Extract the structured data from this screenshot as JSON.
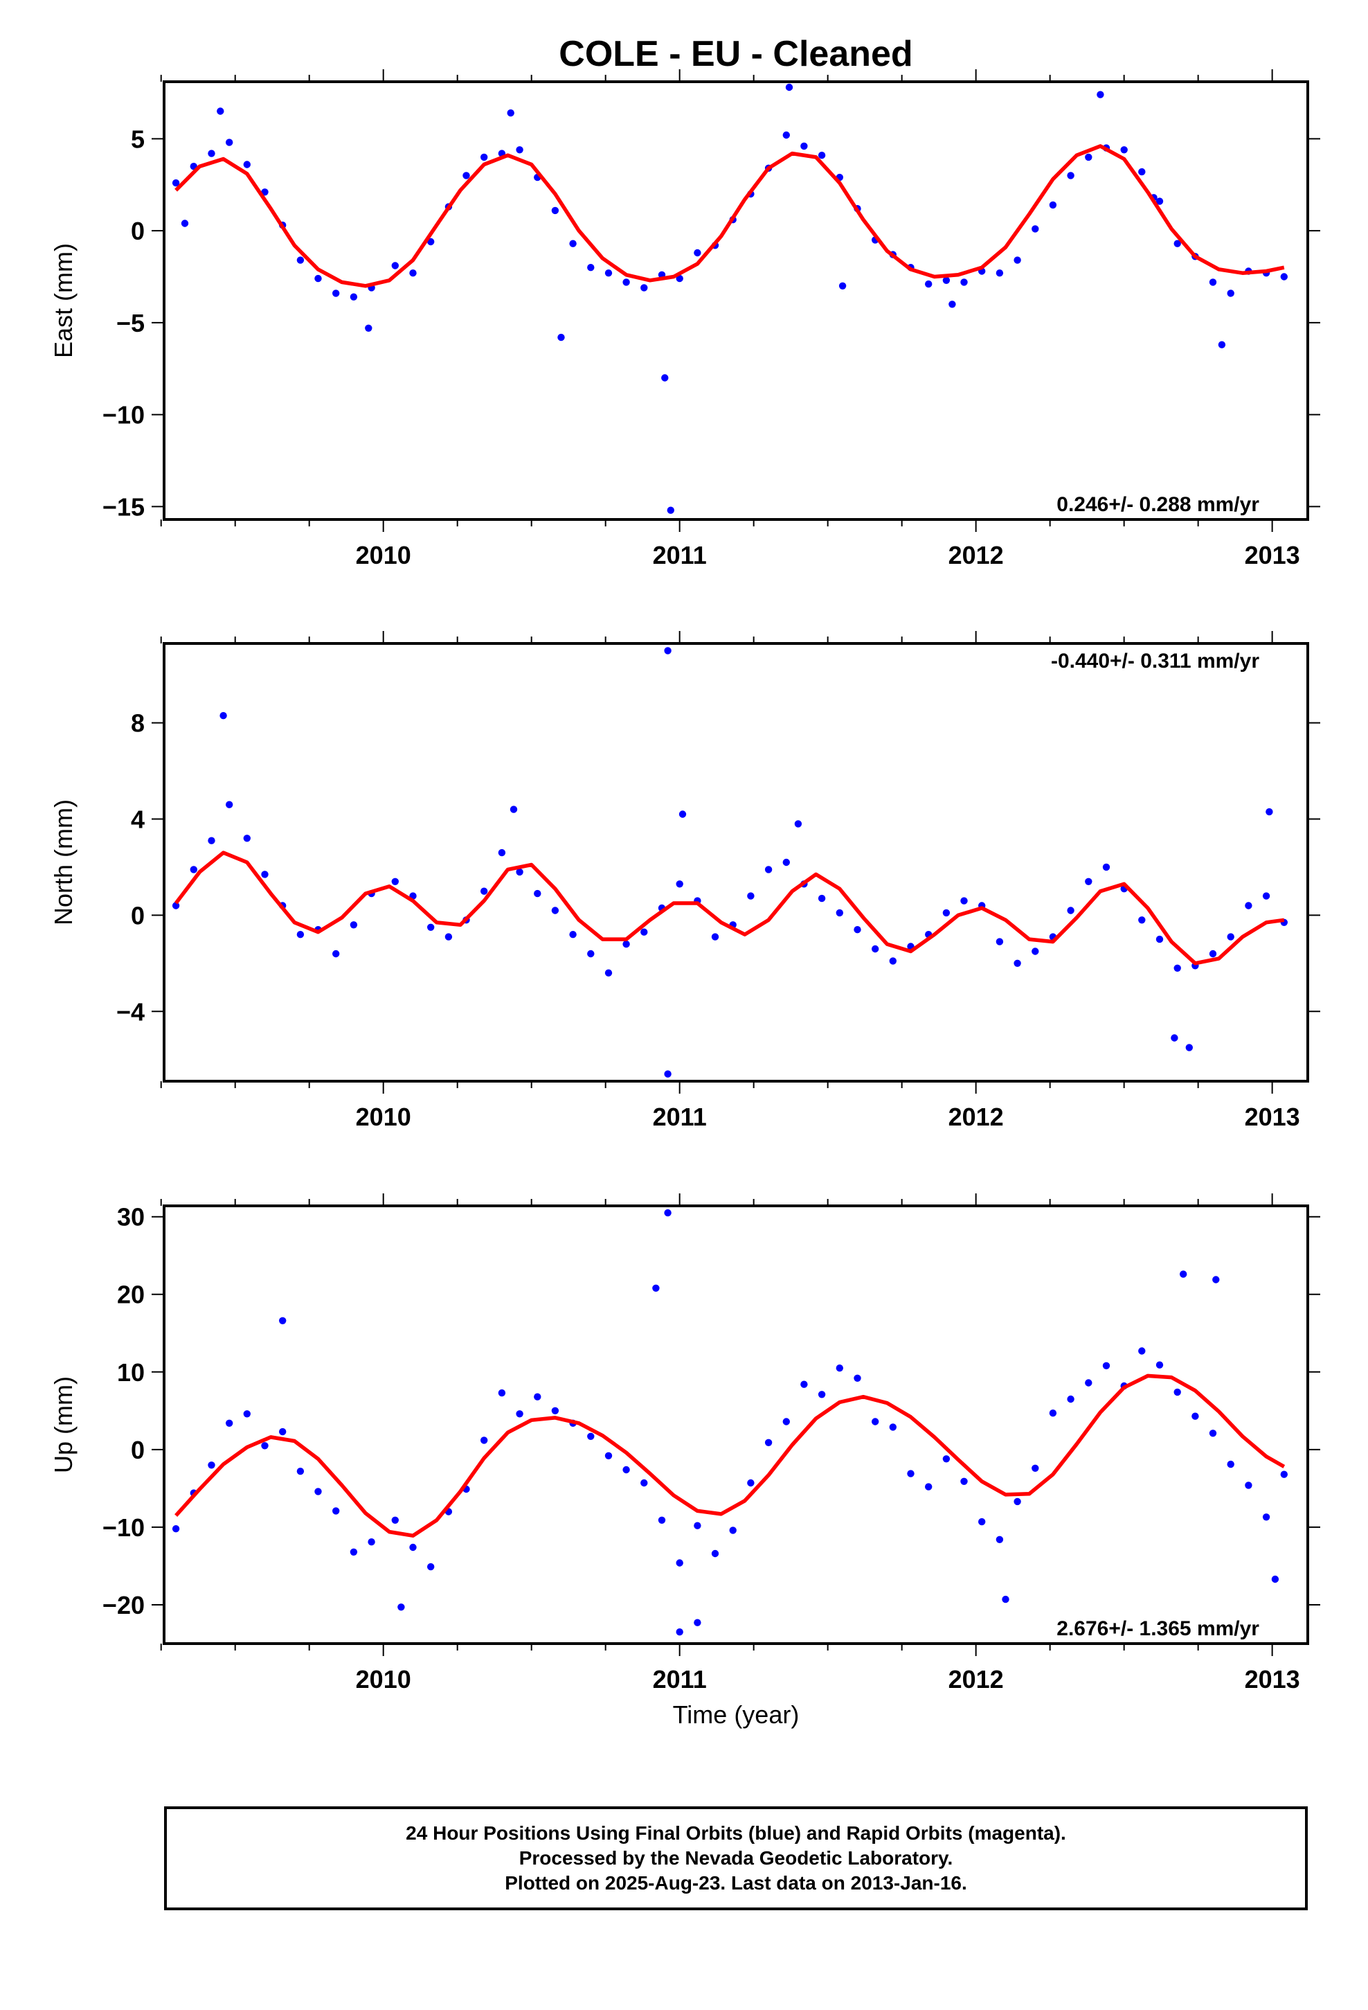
{
  "title": "COLE  - EU - Cleaned",
  "xlabel": "Time (year)",
  "caption": {
    "line1": "24 Hour Positions Using Final Orbits (blue) and Rapid Orbits (magenta).",
    "line2": "Processed by the Nevada Geodetic Laboratory.",
    "line3": "Plotted on 2025-Aug-23. Last data on 2013-Jan-16."
  },
  "colors": {
    "points": "#0000ff",
    "fit": "#ff0000",
    "axes": "#000000"
  },
  "chart_data": [
    {
      "type": "scatter",
      "ylabel": "East (mm)",
      "xlim": [
        2009.26,
        2013.12
      ],
      "ylim": [
        -15.7,
        8.1
      ],
      "x_ticks": [
        2010,
        2011,
        2012,
        2013
      ],
      "y_ticks": [
        -15,
        -10,
        -5,
        0,
        5
      ],
      "rate_label": "0.246+/- 0.288 mm/yr",
      "rate_position": "bottom-right",
      "series": [
        {
          "style": "points",
          "x": [
            2009.3,
            2009.36,
            2009.42,
            2009.48,
            2009.54,
            2009.6,
            2009.66,
            2009.72,
            2009.78,
            2009.84,
            2009.9,
            2009.96,
            2010.04,
            2010.1,
            2010.16,
            2010.22,
            2010.28,
            2010.34,
            2010.4,
            2010.46,
            2010.52,
            2010.58,
            2010.64,
            2010.7,
            2010.76,
            2010.82,
            2010.88,
            2010.94,
            2011.0,
            2011.06,
            2011.12,
            2011.18,
            2011.24,
            2011.3,
            2011.36,
            2011.42,
            2011.48,
            2011.54,
            2011.6,
            2011.66,
            2011.72,
            2011.78,
            2011.84,
            2011.9,
            2011.96,
            2012.02,
            2012.08,
            2012.14,
            2012.2,
            2012.26,
            2012.32,
            2012.38,
            2012.44,
            2012.5,
            2012.56,
            2012.62,
            2012.68,
            2012.74,
            2012.8,
            2012.86,
            2012.92,
            2012.98,
            2013.04,
            2009.45,
            2010.43,
            2011.37,
            2012.42,
            2010.95,
            2010.97,
            2009.95,
            2011.92,
            2012.83,
            2009.33,
            2010.6,
            2011.55,
            2012.6
          ],
          "y": [
            2.6,
            3.5,
            4.2,
            4.8,
            3.6,
            2.1,
            0.3,
            -1.6,
            -2.6,
            -3.4,
            -3.6,
            -3.1,
            -1.9,
            -2.3,
            -0.6,
            1.3,
            3.0,
            4.0,
            4.2,
            4.4,
            2.9,
            1.1,
            -0.7,
            -2.0,
            -2.3,
            -2.8,
            -3.1,
            -2.4,
            -2.6,
            -1.2,
            -0.8,
            0.6,
            2.0,
            3.4,
            5.2,
            4.6,
            4.1,
            2.9,
            1.2,
            -0.5,
            -1.3,
            -2.0,
            -2.9,
            -2.7,
            -2.8,
            -2.2,
            -2.3,
            -1.6,
            0.1,
            1.4,
            3.0,
            4.0,
            4.5,
            4.4,
            3.2,
            1.6,
            -0.7,
            -1.4,
            -2.8,
            -3.4,
            -2.2,
            -2.3,
            -2.5,
            6.5,
            6.4,
            7.8,
            7.4,
            -8.0,
            -15.2,
            -5.3,
            -4.0,
            -6.2,
            0.4,
            -5.8,
            -3.0,
            1.8
          ]
        },
        {
          "style": "line",
          "x": [
            2009.3,
            2009.38,
            2009.46,
            2009.54,
            2009.62,
            2009.7,
            2009.78,
            2009.86,
            2009.94,
            2010.02,
            2010.1,
            2010.18,
            2010.26,
            2010.34,
            2010.42,
            2010.5,
            2010.58,
            2010.66,
            2010.74,
            2010.82,
            2010.9,
            2010.98,
            2011.06,
            2011.14,
            2011.22,
            2011.3,
            2011.38,
            2011.46,
            2011.54,
            2011.62,
            2011.7,
            2011.78,
            2011.86,
            2011.94,
            2012.02,
            2012.1,
            2012.18,
            2012.26,
            2012.34,
            2012.42,
            2012.5,
            2012.58,
            2012.66,
            2012.74,
            2012.82,
            2012.9,
            2012.98,
            2013.04
          ],
          "y": [
            2.2,
            3.5,
            3.9,
            3.1,
            1.2,
            -0.8,
            -2.1,
            -2.8,
            -3.0,
            -2.7,
            -1.6,
            0.3,
            2.2,
            3.6,
            4.1,
            3.6,
            2.0,
            0.0,
            -1.5,
            -2.4,
            -2.7,
            -2.5,
            -1.8,
            -0.3,
            1.7,
            3.4,
            4.2,
            4.0,
            2.6,
            0.6,
            -1.1,
            -2.1,
            -2.5,
            -2.4,
            -2.0,
            -0.9,
            0.9,
            2.8,
            4.1,
            4.6,
            3.9,
            2.1,
            0.1,
            -1.4,
            -2.1,
            -2.3,
            -2.2,
            -2.0
          ]
        }
      ]
    },
    {
      "type": "scatter",
      "ylabel": "North (mm)",
      "xlim": [
        2009.26,
        2013.12
      ],
      "ylim": [
        -6.9,
        11.3
      ],
      "x_ticks": [
        2010,
        2011,
        2012,
        2013
      ],
      "y_ticks": [
        -4,
        0,
        4,
        8
      ],
      "rate_label": "-0.440+/- 0.311 mm/yr",
      "rate_position": "top-right",
      "series": [
        {
          "style": "points",
          "x": [
            2009.3,
            2009.36,
            2009.42,
            2009.48,
            2009.54,
            2009.6,
            2009.66,
            2009.72,
            2009.78,
            2009.84,
            2009.9,
            2009.96,
            2010.04,
            2010.1,
            2010.16,
            2010.22,
            2010.28,
            2010.34,
            2010.4,
            2010.46,
            2010.52,
            2010.58,
            2010.64,
            2010.7,
            2010.76,
            2010.82,
            2010.88,
            2010.94,
            2011.0,
            2011.06,
            2011.12,
            2011.18,
            2011.24,
            2011.3,
            2011.36,
            2011.42,
            2011.48,
            2011.54,
            2011.6,
            2011.66,
            2011.72,
            2011.78,
            2011.84,
            2011.9,
            2011.96,
            2012.02,
            2012.08,
            2012.14,
            2012.2,
            2012.26,
            2012.32,
            2012.38,
            2012.44,
            2012.5,
            2012.56,
            2012.62,
            2012.68,
            2012.74,
            2012.8,
            2012.86,
            2012.92,
            2012.98,
            2013.04,
            2009.46,
            2010.96,
            2010.96,
            2012.67,
            2012.72,
            2011.01,
            2010.44,
            2011.4,
            2012.99
          ],
          "y": [
            0.4,
            1.9,
            3.1,
            4.6,
            3.2,
            1.7,
            0.4,
            -0.8,
            -0.6,
            -1.6,
            -0.4,
            0.9,
            1.4,
            0.8,
            -0.5,
            -0.9,
            -0.2,
            1.0,
            2.6,
            1.8,
            0.9,
            0.2,
            -0.8,
            -1.6,
            -2.4,
            -1.2,
            -0.7,
            0.3,
            1.3,
            0.6,
            -0.9,
            -0.4,
            0.8,
            1.9,
            2.2,
            1.3,
            0.7,
            0.1,
            -0.6,
            -1.4,
            -1.9,
            -1.3,
            -0.8,
            0.1,
            0.6,
            0.4,
            -1.1,
            -2.0,
            -1.5,
            -0.9,
            0.2,
            1.4,
            2.0,
            1.1,
            -0.2,
            -1.0,
            -2.2,
            -2.1,
            -1.6,
            -0.9,
            0.4,
            0.8,
            -0.3,
            8.3,
            11.0,
            -6.6,
            -5.1,
            -5.5,
            4.2,
            4.4,
            3.8,
            4.3
          ]
        },
        {
          "style": "line",
          "x": [
            2009.3,
            2009.38,
            2009.46,
            2009.54,
            2009.62,
            2009.7,
            2009.78,
            2009.86,
            2009.94,
            2010.02,
            2010.1,
            2010.18,
            2010.26,
            2010.34,
            2010.42,
            2010.5,
            2010.58,
            2010.66,
            2010.74,
            2010.82,
            2010.9,
            2010.98,
            2011.06,
            2011.14,
            2011.22,
            2011.3,
            2011.38,
            2011.46,
            2011.54,
            2011.62,
            2011.7,
            2011.78,
            2011.86,
            2011.94,
            2012.02,
            2012.1,
            2012.18,
            2012.26,
            2012.34,
            2012.42,
            2012.5,
            2012.58,
            2012.66,
            2012.74,
            2012.82,
            2012.9,
            2012.98,
            2013.04
          ],
          "y": [
            0.5,
            1.8,
            2.6,
            2.2,
            0.9,
            -0.3,
            -0.7,
            -0.1,
            0.9,
            1.2,
            0.6,
            -0.3,
            -0.4,
            0.6,
            1.9,
            2.1,
            1.1,
            -0.2,
            -1.0,
            -1.0,
            -0.2,
            0.5,
            0.5,
            -0.3,
            -0.8,
            -0.2,
            1.0,
            1.7,
            1.1,
            -0.1,
            -1.2,
            -1.5,
            -0.8,
            0.0,
            0.3,
            -0.2,
            -1.0,
            -1.1,
            -0.1,
            1.0,
            1.3,
            0.3,
            -1.1,
            -2.0,
            -1.8,
            -0.9,
            -0.3,
            -0.2
          ]
        }
      ]
    },
    {
      "type": "scatter",
      "ylabel": "Up (mm)",
      "xlim": [
        2009.26,
        2013.12
      ],
      "ylim": [
        -25.0,
        31.4
      ],
      "x_ticks": [
        2010,
        2011,
        2012,
        2013
      ],
      "y_ticks": [
        -20,
        -10,
        0,
        10,
        20,
        30
      ],
      "rate_label": "2.676+/- 1.365 mm/yr",
      "rate_position": "bottom-right",
      "series": [
        {
          "style": "points",
          "x": [
            2009.3,
            2009.36,
            2009.42,
            2009.48,
            2009.54,
            2009.6,
            2009.66,
            2009.72,
            2009.78,
            2009.84,
            2009.9,
            2009.96,
            2010.04,
            2010.1,
            2010.16,
            2010.22,
            2010.28,
            2010.34,
            2010.4,
            2010.46,
            2010.52,
            2010.58,
            2010.64,
            2010.7,
            2010.76,
            2010.82,
            2010.88,
            2010.94,
            2011.0,
            2011.06,
            2011.12,
            2011.18,
            2011.24,
            2011.3,
            2011.36,
            2011.42,
            2011.48,
            2011.54,
            2011.6,
            2011.66,
            2011.72,
            2011.78,
            2011.84,
            2011.9,
            2011.96,
            2012.02,
            2012.08,
            2012.14,
            2012.2,
            2012.26,
            2012.32,
            2012.38,
            2012.44,
            2012.5,
            2012.56,
            2012.62,
            2012.68,
            2012.74,
            2012.8,
            2012.86,
            2012.92,
            2012.98,
            2013.04,
            2010.96,
            2010.92,
            2012.7,
            2012.81,
            2011.0,
            2011.06,
            2009.66,
            2010.06,
            2012.1,
            2013.01
          ],
          "y": [
            -10.2,
            -5.6,
            -2.0,
            3.4,
            4.6,
            0.5,
            2.3,
            -2.8,
            -5.4,
            -7.9,
            -13.2,
            -11.9,
            -9.1,
            -12.6,
            -15.1,
            -8.0,
            -5.1,
            1.2,
            7.3,
            4.6,
            6.8,
            5.0,
            3.4,
            1.7,
            -0.8,
            -2.6,
            -4.3,
            -9.1,
            -14.6,
            -9.8,
            -13.4,
            -10.4,
            -4.3,
            0.9,
            3.6,
            8.4,
            7.1,
            10.5,
            9.2,
            3.6,
            2.9,
            -3.1,
            -4.8,
            -1.2,
            -4.1,
            -9.3,
            -11.6,
            -6.7,
            -2.4,
            4.7,
            6.5,
            8.6,
            10.8,
            8.2,
            12.7,
            10.9,
            7.4,
            4.3,
            2.1,
            -1.9,
            -4.6,
            -8.7,
            -3.2,
            30.5,
            20.8,
            22.6,
            21.9,
            -23.5,
            -22.3,
            16.6,
            -20.3,
            -19.3,
            -16.7
          ]
        },
        {
          "style": "line",
          "x": [
            2009.3,
            2009.38,
            2009.46,
            2009.54,
            2009.62,
            2009.7,
            2009.78,
            2009.86,
            2009.94,
            2010.02,
            2010.1,
            2010.18,
            2010.26,
            2010.34,
            2010.42,
            2010.5,
            2010.58,
            2010.66,
            2010.74,
            2010.82,
            2010.9,
            2010.98,
            2011.06,
            2011.14,
            2011.22,
            2011.3,
            2011.38,
            2011.46,
            2011.54,
            2011.62,
            2011.7,
            2011.78,
            2011.86,
            2011.94,
            2012.02,
            2012.1,
            2012.18,
            2012.26,
            2012.34,
            2012.42,
            2012.5,
            2012.58,
            2012.66,
            2012.74,
            2012.82,
            2012.9,
            2012.98,
            2013.04
          ],
          "y": [
            -8.5,
            -5.1,
            -1.9,
            0.3,
            1.6,
            1.1,
            -1.2,
            -4.6,
            -8.2,
            -10.6,
            -11.1,
            -9.1,
            -5.4,
            -1.1,
            2.2,
            3.8,
            4.1,
            3.4,
            1.8,
            -0.4,
            -3.1,
            -5.9,
            -7.9,
            -8.3,
            -6.6,
            -3.3,
            0.6,
            4.0,
            6.1,
            6.8,
            6.0,
            4.2,
            1.6,
            -1.3,
            -4.1,
            -5.8,
            -5.7,
            -3.2,
            0.7,
            4.8,
            8.0,
            9.5,
            9.3,
            7.6,
            4.9,
            1.7,
            -0.9,
            -2.2
          ]
        }
      ]
    }
  ]
}
